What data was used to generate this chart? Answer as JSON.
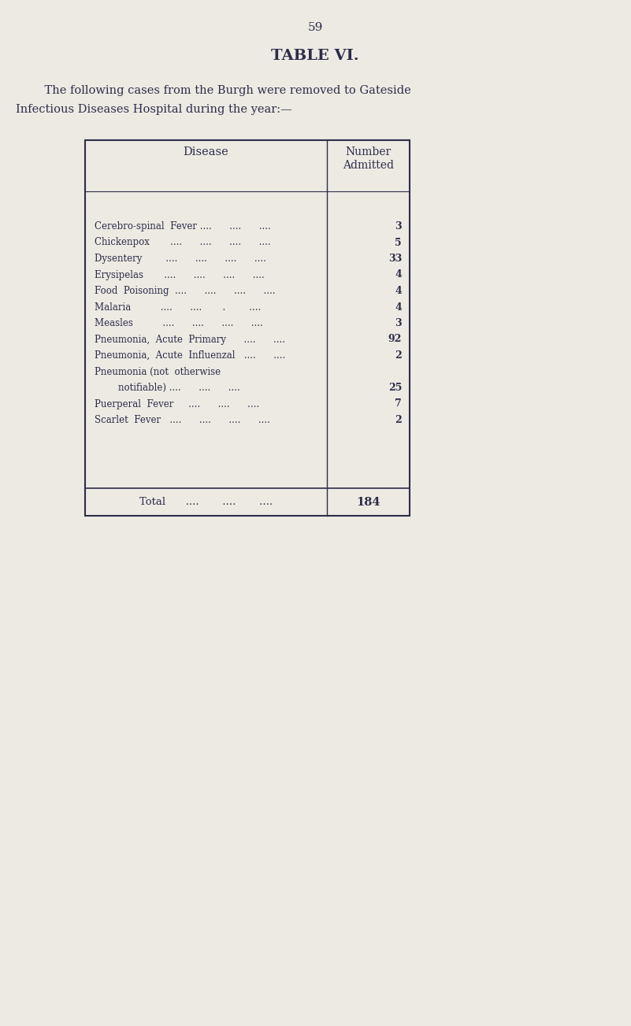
{
  "page_number": "59",
  "table_title": "TABLE VI.",
  "intro_text_line1": "    The following cases from the Burgh were removed to Gateside",
  "intro_text_line2": "Infectious Diseases Hospital during the year:—",
  "col1_header": "Disease",
  "col2_header": "Number\nAdmitted",
  "diseases": [
    [
      "Cerebro-spinal  Fever ....      ....      ....",
      "3"
    ],
    [
      "Chickenpox       ....      ....      ....      ....",
      "5"
    ],
    [
      "Dysentery        ....      ....      ....      ....",
      "33"
    ],
    [
      "Erysipelas       ....      ....      ....      ....",
      "4"
    ],
    [
      "Food  Poisoning  ....      ....      ....      ....",
      "4"
    ],
    [
      "Malaria          ....      ....       .        ....",
      "4"
    ],
    [
      "Measles          ....      ....      ....      ....",
      "3"
    ],
    [
      "Pneumonia,  Acute  Primary      ....      ....",
      "92"
    ],
    [
      "Pneumonia,  Acute  Influenzal   ....      ....",
      "2"
    ],
    [
      "Pneumonia (not  otherwise",
      ""
    ],
    [
      "        notifiable) ....      ....      ....",
      "25"
    ],
    [
      "Puerperal  Fever     ....      ....      ....",
      "7"
    ],
    [
      "Scarlet  Fever   ....      ....      ....      ....",
      "2"
    ]
  ],
  "total_label": "Total      ....       ....       ....",
  "total_value": "184",
  "bg_color": "#edeae3",
  "text_color": "#2d2d4a",
  "table_border_color": "#2d2d4a",
  "figsize": [
    8.01,
    13.03
  ],
  "dpi": 100
}
